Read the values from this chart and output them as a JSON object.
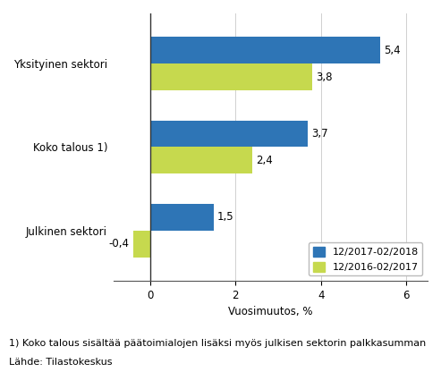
{
  "categories": [
    "Julkinen sektori",
    "Koko talous 1)",
    "Yksityinen sektori"
  ],
  "series": [
    {
      "label": "12/2017-02/2018",
      "values": [
        1.5,
        3.7,
        5.4
      ],
      "color": "#2E75B6"
    },
    {
      "label": "12/2016-02/2017",
      "values": [
        -0.4,
        2.4,
        3.8
      ],
      "color": "#C6D94E"
    }
  ],
  "xlabel": "Vuosimuutos, %",
  "xlim": [
    -0.85,
    6.5
  ],
  "xticks": [
    0,
    2,
    4,
    6
  ],
  "footnote1": "1) Koko talous sisältää päätoimialojen lisäksi myös julkisen sektorin palkkasumman",
  "footnote2": "Lähde: Tilastokeskus",
  "bar_height": 0.32,
  "value_fontsize": 8.5,
  "label_fontsize": 8.5,
  "tick_fontsize": 8.5,
  "legend_fontsize": 8,
  "footnote_fontsize": 8,
  "background_color": "#FFFFFF",
  "blue_color": "#2E75B6",
  "green_color": "#C6D94E"
}
